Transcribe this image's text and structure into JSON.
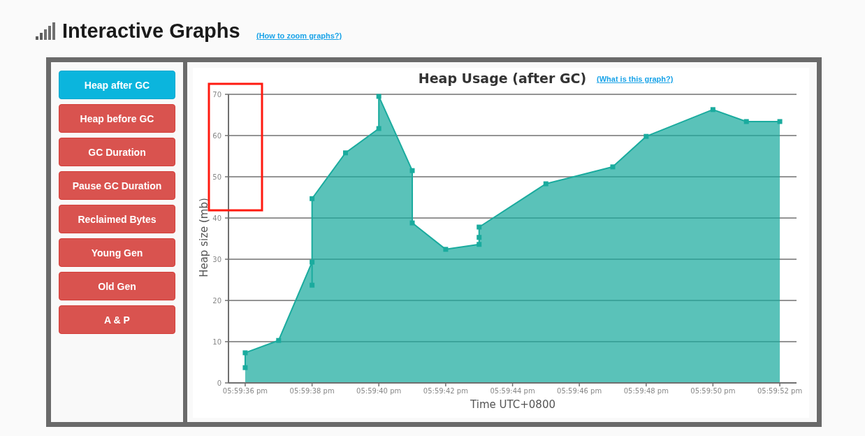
{
  "chart_data": {
    "type": "area",
    "title": "Heap Usage (after GC)",
    "xlabel": "Time UTC+0800",
    "ylabel": "Heap size (mb)",
    "annotations": [
      "Interactive Graphs",
      "(How to zoom graphs?)",
      "(What is this graph?)",
      "Heap after GC",
      "Heap before GC",
      "GC Duration",
      "Pause GC Duration",
      "Reclaimed Bytes",
      "Young Gen",
      "Old Gen",
      "A & P"
    ],
    "x": [
      17.993333,
      17.993333,
      17.993611,
      17.993889,
      17.993889,
      17.993889,
      17.994167,
      17.994444,
      17.994444,
      17.994722,
      17.994722,
      17.995,
      17.995278,
      17.995278,
      17.995278,
      17.995833,
      17.996389,
      17.996667,
      17.997222,
      17.9975,
      17.997778
    ],
    "series": [
      {
        "color": "#1aab9e",
        "values": [
          3.7,
          7.3,
          10.3,
          29.3,
          23.7,
          44.7,
          55.8,
          61.7,
          69.5,
          51.5,
          38.8,
          32.4,
          33.6,
          35.3,
          37.8,
          48.3,
          52.4,
          59.8,
          66.3,
          63.4,
          63.4
        ]
      }
    ],
    "xlim": [
      17.993194,
      17.997917
    ],
    "xticks": [
      {
        "value": 17.993333,
        "label": "05:59:36 pm"
      },
      {
        "value": 17.993889,
        "label": "05:59:38 pm"
      },
      {
        "value": 17.994444,
        "label": "05:59:40 pm"
      },
      {
        "value": 17.995,
        "label": "05:59:42 pm"
      },
      {
        "value": 17.995556,
        "label": "05:59:44 pm"
      },
      {
        "value": 17.996111,
        "label": "05:59:46 pm"
      },
      {
        "value": 17.996667,
        "label": "05:59:48 pm"
      },
      {
        "value": 17.997222,
        "label": "05:59:50 pm"
      },
      {
        "value": 17.997778,
        "label": "05:59:52 pm"
      }
    ],
    "ylim": [
      0,
      70
    ],
    "yticks": [
      0,
      10,
      20,
      30,
      40,
      50,
      60,
      70
    ],
    "grid": "y",
    "marker": "square"
  }
}
